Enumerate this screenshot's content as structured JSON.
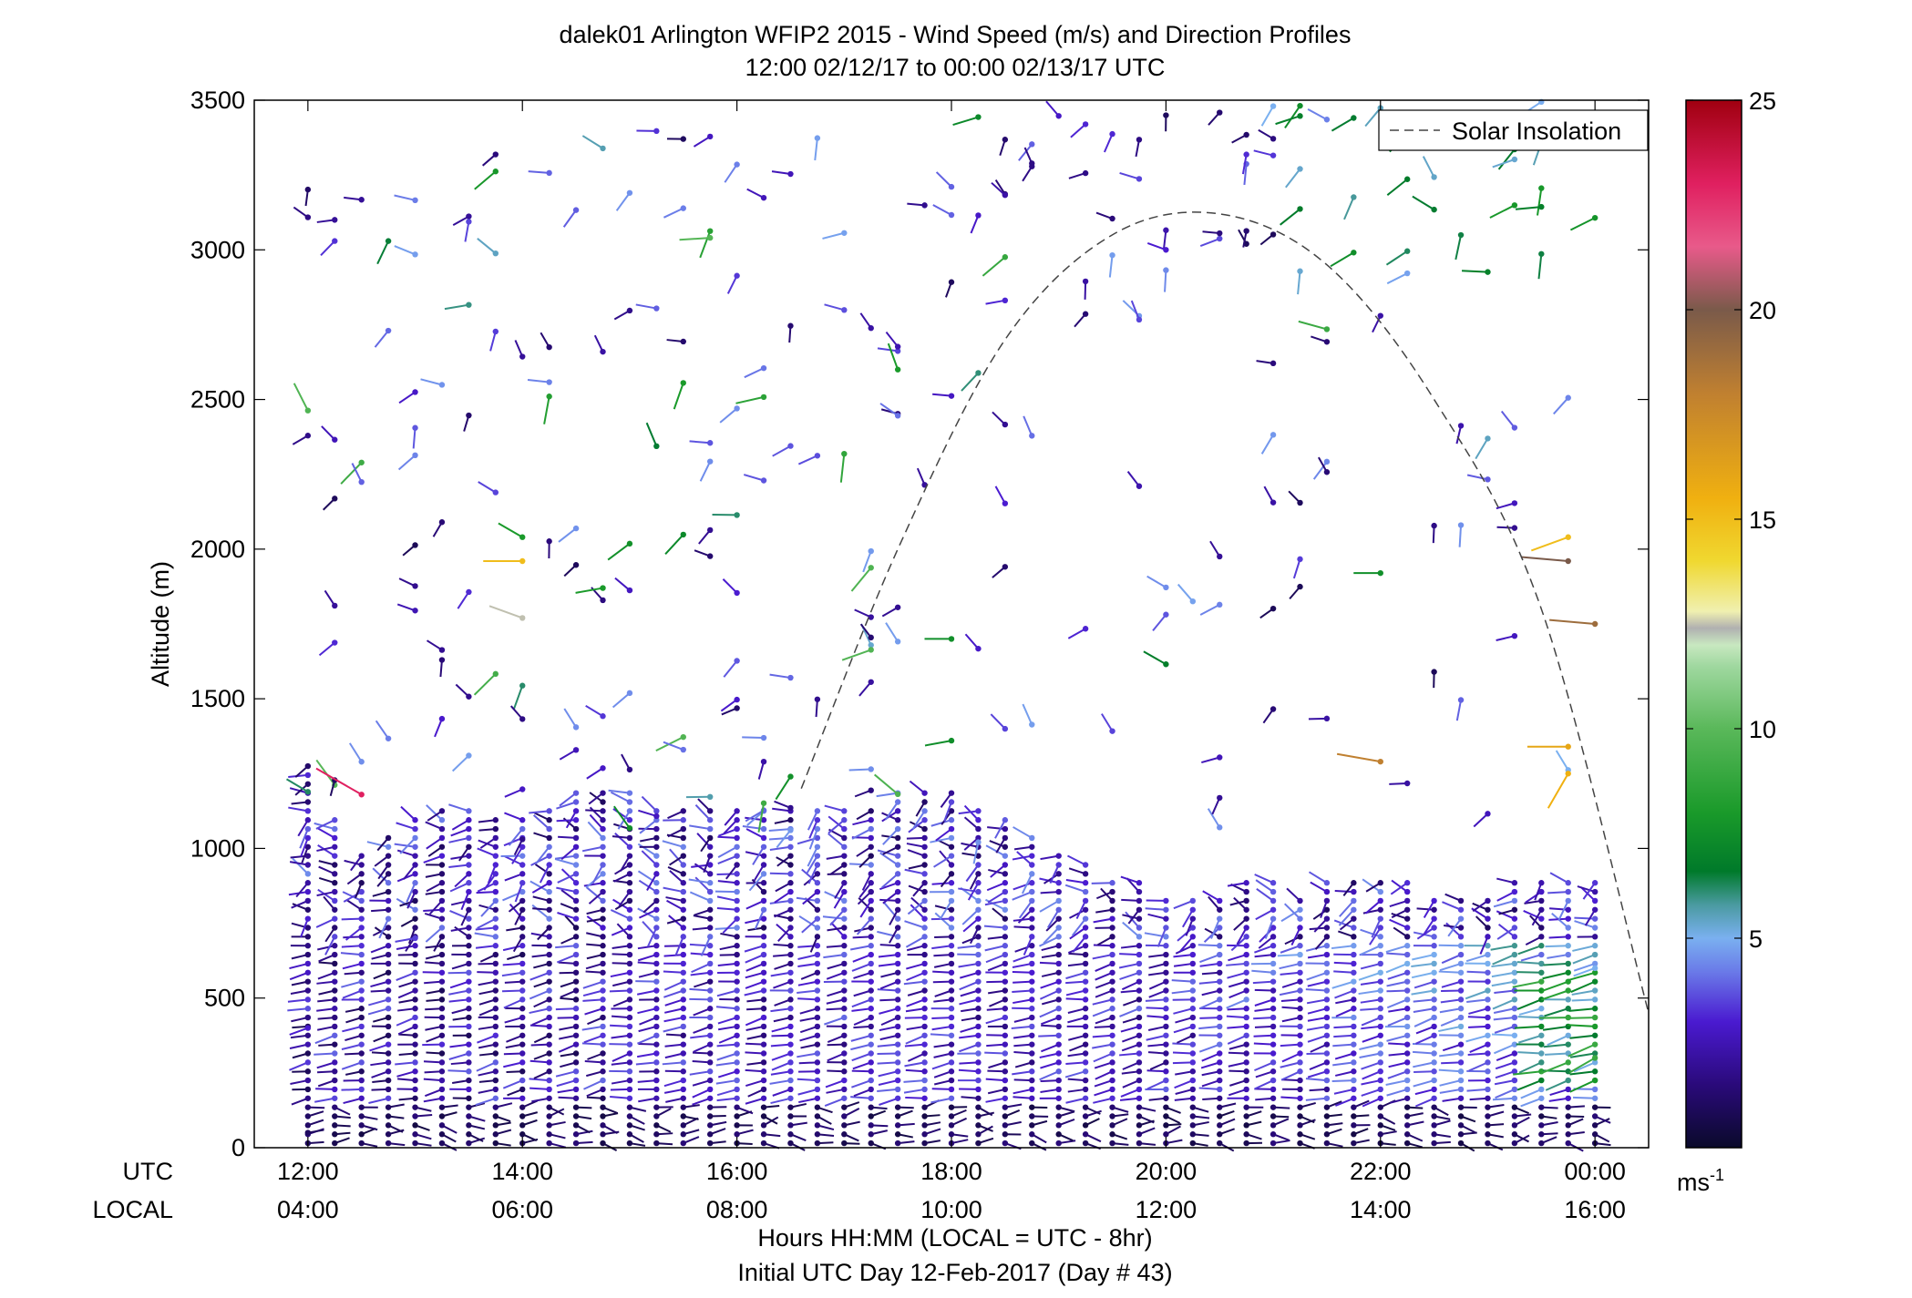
{
  "chart_data": {
    "type": "scatter",
    "title": "dalek01 Arlington WFIP2 2015 - Wind Speed (m/s) and Direction Profiles",
    "subtitle": "12:00 02/12/17 to 00:00 02/13/17  UTC",
    "ylabel": "Altitude (m)",
    "xlabel": "Hours HH:MM  (LOCAL = UTC - 8hr)",
    "xlabel2": "Initial UTC Day 12-Feb-2017 (Day # 43)",
    "row_label_utc": "UTC",
    "row_label_local": "LOCAL",
    "xlim": [
      11.5,
      24.5
    ],
    "ylim": [
      0,
      3500
    ],
    "x_ticks_utc": [
      "12:00",
      "14:00",
      "16:00",
      "18:00",
      "20:00",
      "22:00",
      "00:00"
    ],
    "x_ticks_local": [
      "04:00",
      "06:00",
      "08:00",
      "10:00",
      "12:00",
      "14:00",
      "16:00"
    ],
    "x_tick_hours": [
      12,
      14,
      16,
      18,
      20,
      22,
      24
    ],
    "y_ticks": [
      "0",
      "500",
      "1000",
      "1500",
      "2000",
      "2500",
      "3000",
      "3500"
    ],
    "y_tick_values": [
      0,
      500,
      1000,
      1500,
      2000,
      2500,
      3000,
      3500
    ],
    "legend": {
      "label": "Solar Insolation",
      "position": "top-right"
    },
    "colorbar": {
      "range": [
        0,
        25
      ],
      "ticks": [
        "5",
        "10",
        "15",
        "20",
        "25"
      ],
      "tick_values": [
        5,
        10,
        15,
        20,
        25
      ],
      "unit_base": "ms",
      "unit_exp": "-1",
      "stops": [
        {
          "v": 0,
          "c": "#0a0a2a"
        },
        {
          "v": 1.5,
          "c": "#2a0a7a"
        },
        {
          "v": 3,
          "c": "#4a1ad0"
        },
        {
          "v": 4.2,
          "c": "#6a7ae8"
        },
        {
          "v": 5,
          "c": "#7ab0f0"
        },
        {
          "v": 5.8,
          "c": "#4a9aa0"
        },
        {
          "v": 6.6,
          "c": "#007a2a"
        },
        {
          "v": 8,
          "c": "#1a9a2a"
        },
        {
          "v": 10,
          "c": "#5ab85a"
        },
        {
          "v": 11.5,
          "c": "#a0d8a0"
        },
        {
          "v": 12,
          "c": "#c8e8c0"
        },
        {
          "v": 12.4,
          "c": "#b0b0b0"
        },
        {
          "v": 12.8,
          "c": "#f0f0b0"
        },
        {
          "v": 14,
          "c": "#f0d830"
        },
        {
          "v": 15.5,
          "c": "#f0b010"
        },
        {
          "v": 18,
          "c": "#c08030"
        },
        {
          "v": 20,
          "c": "#7a5a4a"
        },
        {
          "v": 21.5,
          "c": "#e85a8a"
        },
        {
          "v": 23,
          "c": "#e02060"
        },
        {
          "v": 25,
          "c": "#a00010"
        }
      ]
    },
    "solar_insolation": {
      "hours": [
        16.6,
        17.5,
        18.5,
        19.5,
        20.5,
        21.5,
        22.5,
        23.5,
        24.5
      ],
      "altitude": [
        1200,
        2000,
        2700,
        3050,
        3120,
        2950,
        2500,
        1800,
        450
      ]
    },
    "wind_profiles": {
      "hours": [
        12.0,
        12.25,
        12.5,
        12.75,
        13.0,
        13.25,
        13.5,
        13.75,
        14.0,
        14.25,
        14.5,
        14.75,
        15.0,
        15.25,
        15.5,
        15.75,
        16.0,
        16.25,
        16.5,
        16.75,
        17.0,
        17.25,
        17.5,
        17.75,
        18.0,
        18.25,
        18.5,
        18.75,
        19.0,
        19.25,
        19.5,
        19.75,
        20.0,
        20.25,
        20.5,
        20.75,
        21.0,
        21.25,
        21.5,
        21.75,
        22.0,
        22.25,
        22.5,
        22.75,
        23.0,
        23.25,
        23.5,
        23.75,
        24.0
      ],
      "bulk_top_altitude": [
        1280,
        1100,
        1000,
        1050,
        1100,
        1130,
        1130,
        1100,
        1100,
        1150,
        1200,
        1200,
        1200,
        1130,
        1130,
        1130,
        1130,
        1130,
        1130,
        1130,
        1130,
        1150,
        1200,
        1200,
        1200,
        1150,
        1100,
        1050,
        1000,
        950,
        900,
        900,
        850,
        850,
        850,
        900,
        900,
        850,
        900,
        900,
        900,
        900,
        850,
        850,
        850,
        900,
        900,
        900,
        900
      ],
      "sample_vectors": [
        {
          "t": 12.0,
          "z": 50,
          "speed": 1.0,
          "dir": 80
        },
        {
          "t": 12.0,
          "z": 400,
          "speed": 3.0,
          "dir": 250
        },
        {
          "t": 12.5,
          "z": 1180,
          "speed": 23.0,
          "dir": 300
        },
        {
          "t": 13.0,
          "z": 700,
          "speed": 3.5,
          "dir": 260
        },
        {
          "t": 14.0,
          "z": 2040,
          "speed": 8.0,
          "dir": 300
        },
        {
          "t": 14.0,
          "z": 1960,
          "speed": 15.0,
          "dir": 270
        },
        {
          "t": 14.0,
          "z": 1770,
          "speed": 12.5,
          "dir": 290
        },
        {
          "t": 14.75,
          "z": 1870,
          "speed": 8.0,
          "dir": 260
        },
        {
          "t": 16.0,
          "z": 2470,
          "speed": 4.5,
          "dir": 230
        },
        {
          "t": 17.5,
          "z": 2600,
          "speed": 8.0,
          "dir": 340
        },
        {
          "t": 18.0,
          "z": 1700,
          "speed": 7.5,
          "dir": 270
        },
        {
          "t": 20.0,
          "z": 3000,
          "speed": 3.0,
          "dir": 290
        },
        {
          "t": 21.0,
          "z": 3480,
          "speed": 5.0,
          "dir": 210
        },
        {
          "t": 22.0,
          "z": 1920,
          "speed": 7.5,
          "dir": 270
        },
        {
          "t": 22.0,
          "z": 1290,
          "speed": 18.0,
          "dir": 280
        },
        {
          "t": 23.75,
          "z": 2040,
          "speed": 15.0,
          "dir": 250
        },
        {
          "t": 23.75,
          "z": 1960,
          "speed": 20.0,
          "dir": 275
        },
        {
          "t": 24.0,
          "z": 1750,
          "speed": 19.0,
          "dir": 275
        },
        {
          "t": 23.75,
          "z": 1340,
          "speed": 16.0,
          "dir": 270
        },
        {
          "t": 23.75,
          "z": 1250,
          "speed": 15.5,
          "dir": 210
        },
        {
          "t": 24.0,
          "z": 300,
          "speed": 9.0,
          "dir": 240
        },
        {
          "t": 24.0,
          "z": 600,
          "speed": 5.0,
          "dir": 250
        }
      ]
    }
  }
}
